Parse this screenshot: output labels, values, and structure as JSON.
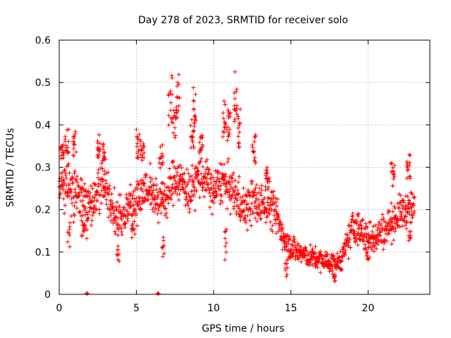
{
  "chart_data": {
    "type": "scatter",
    "marker": "plus",
    "title": "Day 278 of 2023, SRMTID for receiver solo",
    "xlabel": "GPS time / hours",
    "ylabel": "SRMTID / TECUs",
    "xlim": [
      0,
      24
    ],
    "ylim": [
      0,
      0.6
    ],
    "xticks": [
      0,
      5,
      10,
      15,
      20
    ],
    "yticks": [
      0,
      0.1,
      0.2,
      0.3,
      0.4,
      0.5,
      0.6
    ],
    "grid": true,
    "color": "#ff0000",
    "series": [
      {
        "name": "SRMTID",
        "profile": {
          "x": [
            0.0,
            0.5,
            1.0,
            1.5,
            2.0,
            2.5,
            3.0,
            3.5,
            4.0,
            4.5,
            5.0,
            5.5,
            6.0,
            6.5,
            7.0,
            7.5,
            8.0,
            8.5,
            9.0,
            9.5,
            10.0,
            10.5,
            11.0,
            11.5,
            12.0,
            12.5,
            13.0,
            13.5,
            14.0,
            14.5,
            15.0,
            15.5,
            16.0,
            16.5,
            17.0,
            17.5,
            18.0,
            18.5,
            19.0,
            19.5,
            20.0,
            20.5,
            21.0,
            21.5,
            22.0,
            22.5,
            23.0
          ],
          "y_center": [
            0.27,
            0.25,
            0.24,
            0.23,
            0.22,
            0.25,
            0.26,
            0.19,
            0.18,
            0.21,
            0.22,
            0.25,
            0.24,
            0.22,
            0.23,
            0.28,
            0.26,
            0.24,
            0.28,
            0.27,
            0.24,
            0.27,
            0.25,
            0.23,
            0.2,
            0.22,
            0.21,
            0.22,
            0.19,
            0.14,
            0.11,
            0.1,
            0.09,
            0.085,
            0.08,
            0.075,
            0.07,
            0.1,
            0.16,
            0.15,
            0.13,
            0.14,
            0.15,
            0.17,
            0.19,
            0.2,
            0.2
          ],
          "spread": [
            0.05,
            0.05,
            0.05,
            0.05,
            0.05,
            0.05,
            0.05,
            0.05,
            0.05,
            0.05,
            0.05,
            0.05,
            0.05,
            0.05,
            0.05,
            0.05,
            0.05,
            0.05,
            0.05,
            0.05,
            0.05,
            0.05,
            0.05,
            0.05,
            0.05,
            0.05,
            0.05,
            0.05,
            0.05,
            0.04,
            0.03,
            0.03,
            0.025,
            0.025,
            0.025,
            0.025,
            0.025,
            0.03,
            0.04,
            0.04,
            0.04,
            0.04,
            0.04,
            0.04,
            0.04,
            0.04,
            0.04
          ]
        },
        "peaks": [
          {
            "x": 0.2,
            "y": 0.36
          },
          {
            "x": 0.5,
            "y": 0.39
          },
          {
            "x": 1.0,
            "y": 0.39
          },
          {
            "x": 2.6,
            "y": 0.38
          },
          {
            "x": 2.9,
            "y": 0.36
          },
          {
            "x": 5.1,
            "y": 0.39
          },
          {
            "x": 5.4,
            "y": 0.37
          },
          {
            "x": 6.6,
            "y": 0.36
          },
          {
            "x": 7.2,
            "y": 0.52
          },
          {
            "x": 7.5,
            "y": 0.44
          },
          {
            "x": 7.7,
            "y": 0.52
          },
          {
            "x": 8.6,
            "y": 0.42
          },
          {
            "x": 8.8,
            "y": 0.49
          },
          {
            "x": 9.2,
            "y": 0.38
          },
          {
            "x": 10.7,
            "y": 0.46
          },
          {
            "x": 11.0,
            "y": 0.45
          },
          {
            "x": 11.4,
            "y": 0.53
          },
          {
            "x": 11.6,
            "y": 0.44
          },
          {
            "x": 12.6,
            "y": 0.38
          },
          {
            "x": 13.5,
            "y": 0.3
          },
          {
            "x": 21.6,
            "y": 0.32
          },
          {
            "x": 22.6,
            "y": 0.33
          }
        ],
        "troughs": [
          {
            "x": 0.6,
            "y": 0.11
          },
          {
            "x": 1.5,
            "y": 0.13
          },
          {
            "x": 1.7,
            "y": 0.13
          },
          {
            "x": 3.8,
            "y": 0.07
          },
          {
            "x": 4.8,
            "y": 0.12
          },
          {
            "x": 6.7,
            "y": 0.07
          },
          {
            "x": 10.8,
            "y": 0.08
          },
          {
            "x": 14.7,
            "y": 0.04
          },
          {
            "x": 17.8,
            "y": 0.03
          },
          {
            "x": 20.0,
            "y": 0.08
          },
          {
            "x": 22.7,
            "y": 0.11
          }
        ],
        "zero_points": [
          {
            "x": 1.8,
            "y": 0
          },
          {
            "x": 6.4,
            "y": 0
          }
        ]
      }
    ]
  }
}
